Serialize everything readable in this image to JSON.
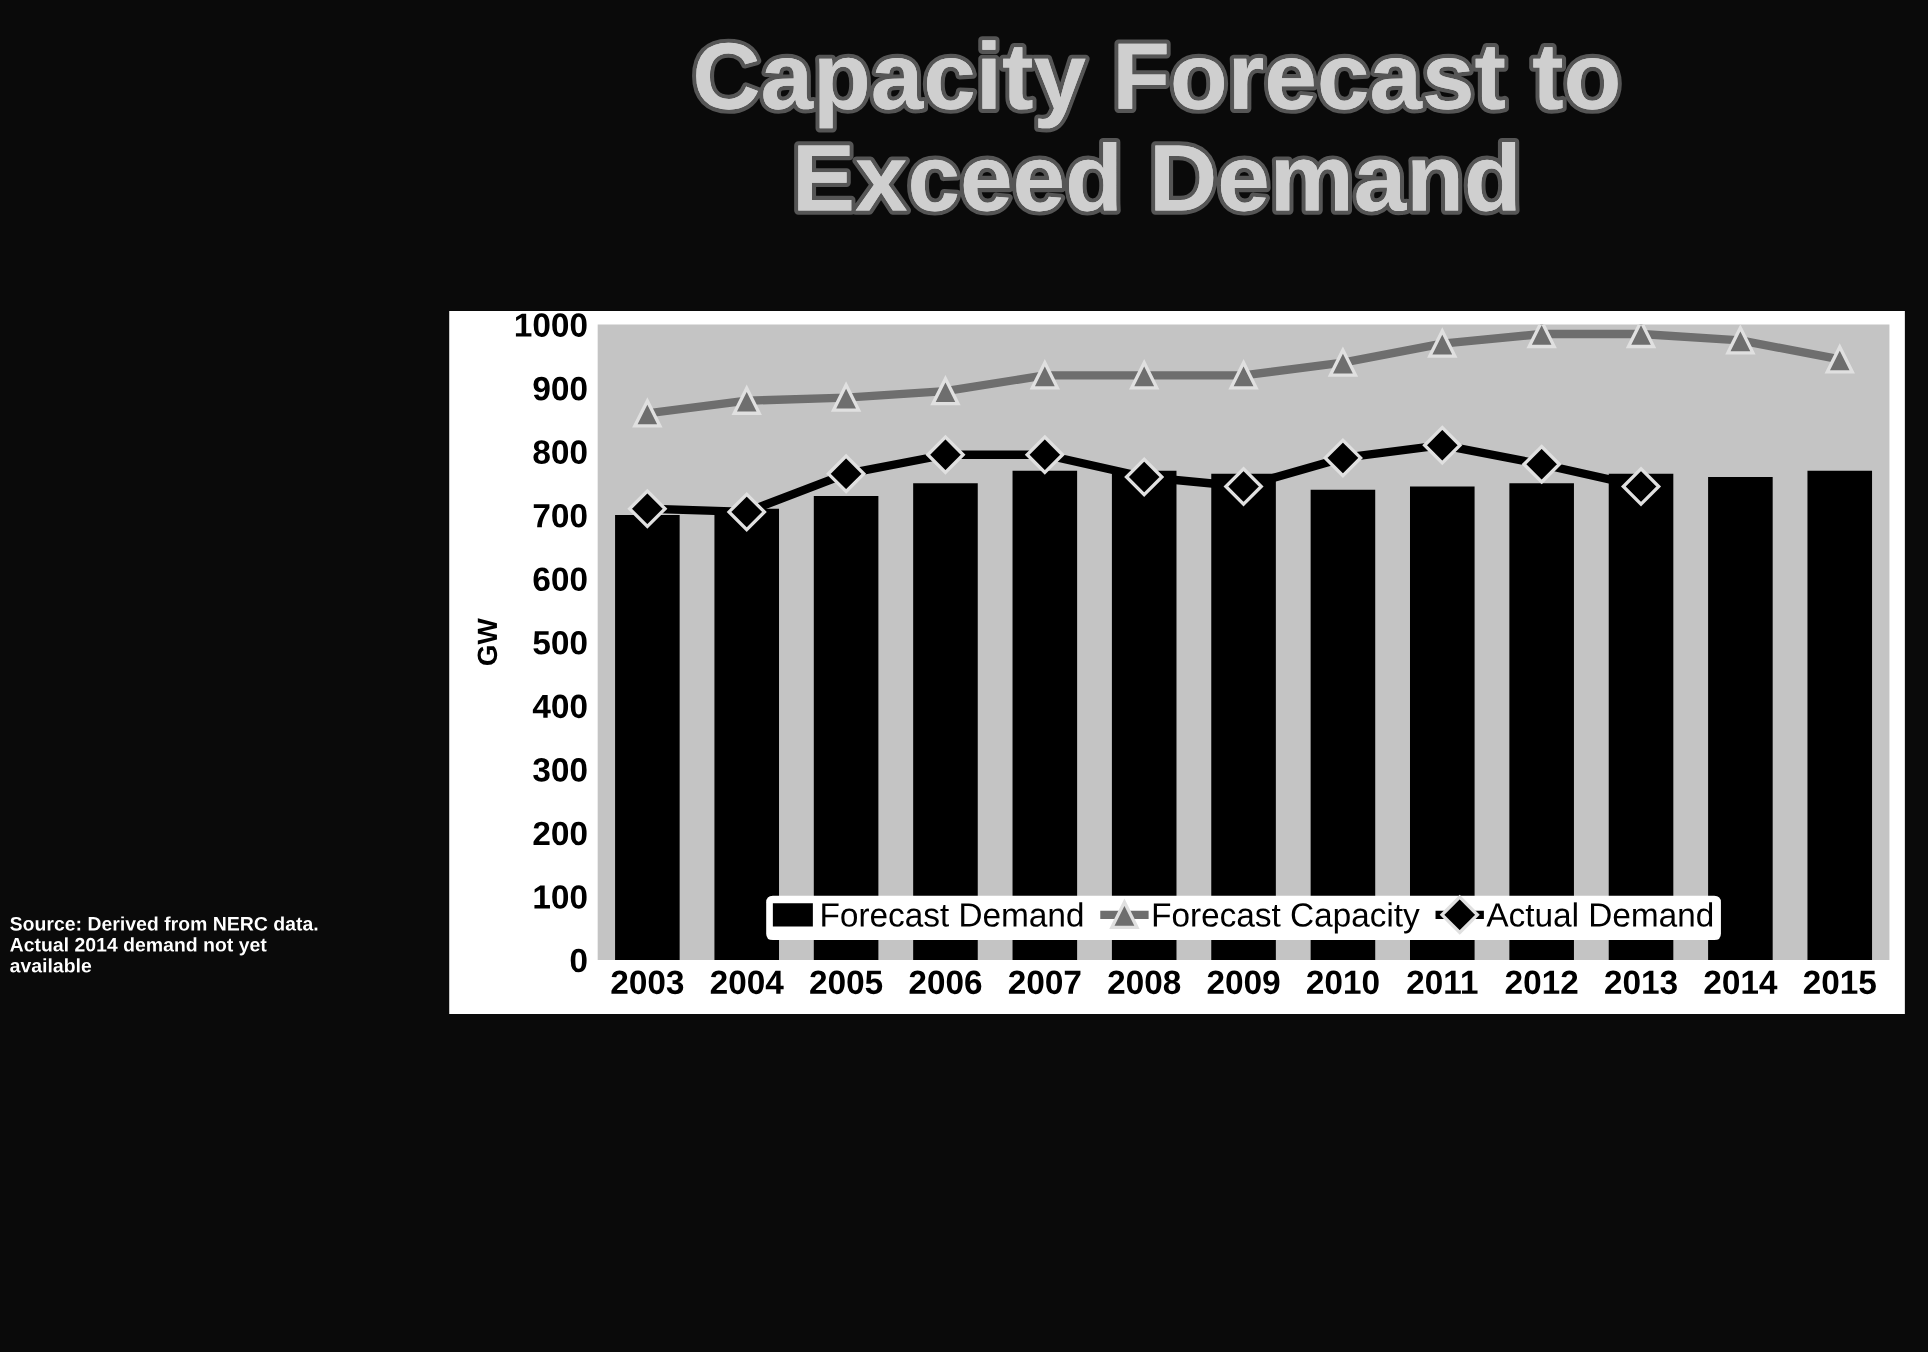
{
  "chart_data": {
    "type": "bar",
    "title": "Capacity Forecast to Exceed Demand",
    "ylabel": "GW",
    "categories": [
      "2003",
      "2004",
      "2005",
      "2006",
      "2007",
      "2008",
      "2009",
      "2010",
      "2011",
      "2012",
      "2013",
      "2014",
      "2015"
    ],
    "series": [
      {
        "name": "Forecast Demand",
        "color": "#000000",
        "values": [
          700,
          710,
          730,
          750,
          770,
          770,
          765,
          740,
          745,
          750,
          765,
          760,
          770
        ]
      },
      {
        "name": "Forecast Capacity",
        "type": "line",
        "color": "#6e6e6e",
        "marker": "triangle",
        "values": [
          860,
          880,
          885,
          895,
          920,
          920,
          920,
          940,
          970,
          985,
          985,
          975,
          945
        ]
      },
      {
        "name": "Actual Demand",
        "type": "line",
        "color": "#000000",
        "marker": "diamond",
        "values": [
          710,
          705,
          765,
          795,
          795,
          760,
          745,
          790,
          810,
          780,
          745,
          null,
          null
        ]
      }
    ],
    "ylim": [
      0,
      1000
    ],
    "yticks": [
      0,
      100,
      200,
      300,
      400,
      500,
      600,
      700,
      800,
      900,
      1000
    ],
    "grid": false,
    "legend": "bottom",
    "annotations": [
      "Source: Derived from NERC data. Actual 2014 demand not yet available"
    ]
  }
}
